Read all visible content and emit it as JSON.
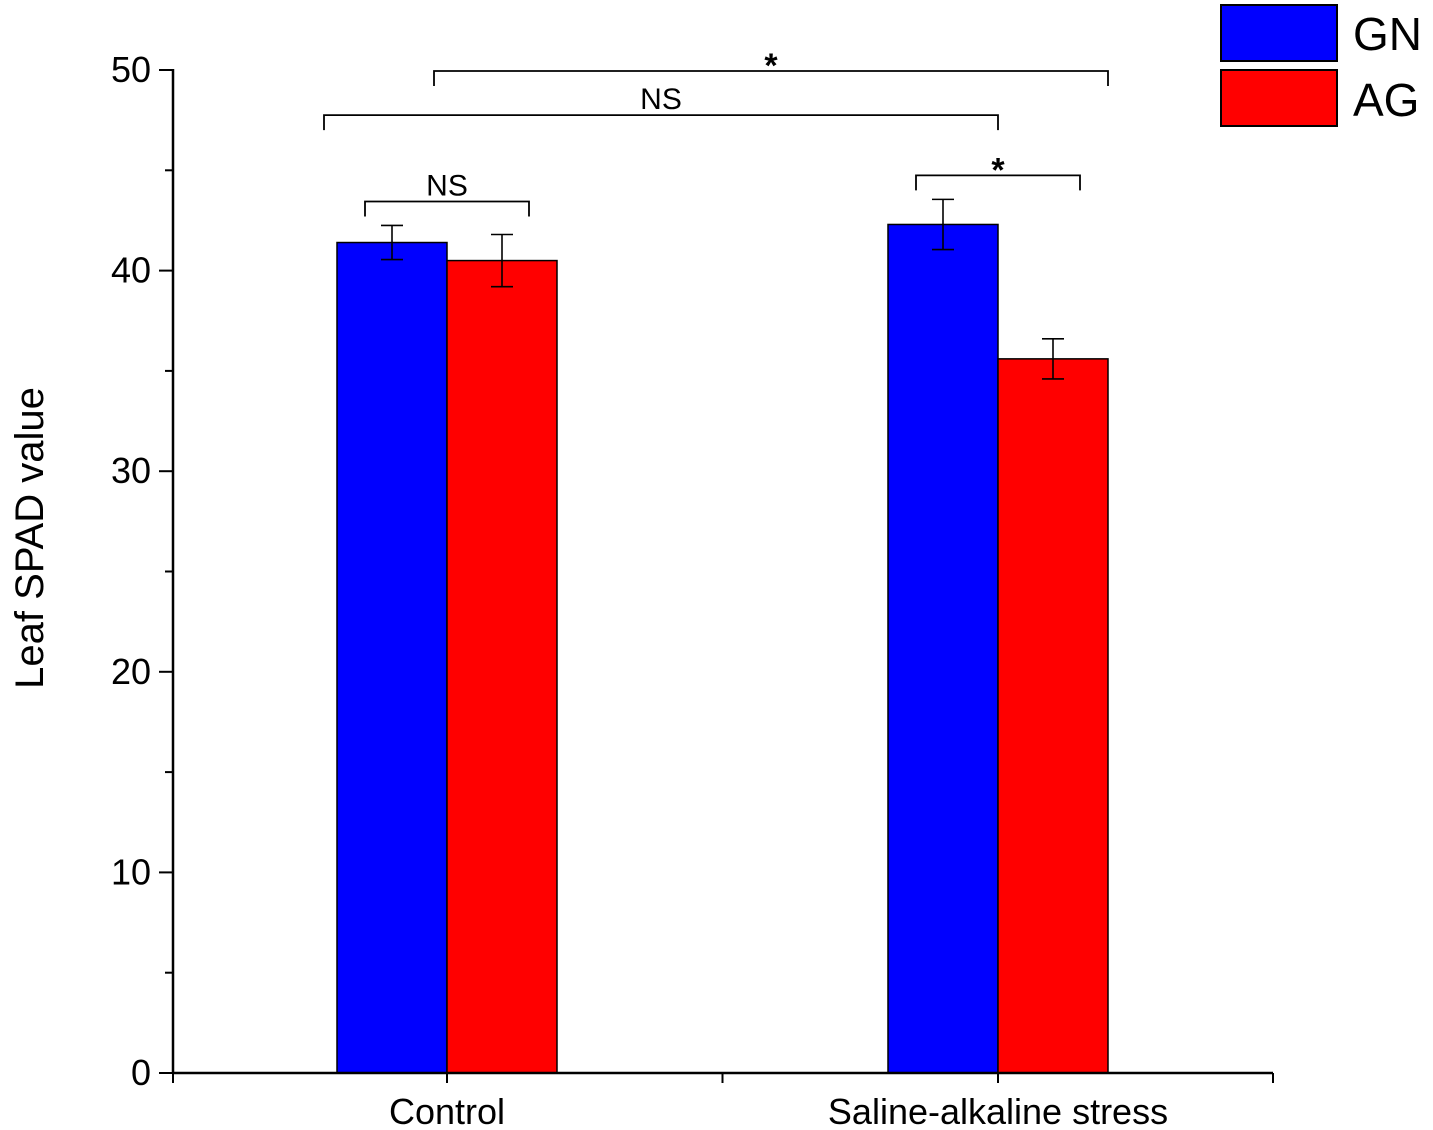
{
  "chart_data": {
    "type": "bar",
    "title": "",
    "xlabel": "",
    "ylabel": "Leaf SPAD value",
    "ylim": [
      0,
      50
    ],
    "yticks": [
      0,
      10,
      20,
      30,
      40,
      50
    ],
    "categories": [
      "Control",
      "Saline-alkaline stress"
    ],
    "series": [
      {
        "name": "GN",
        "color": "#0000ff",
        "values": [
          41.4,
          42.3
        ],
        "errors": [
          0.85,
          1.25
        ]
      },
      {
        "name": "AG",
        "color": "#ff0000",
        "values": [
          40.5,
          35.6
        ],
        "errors": [
          1.3,
          1.0
        ]
      }
    ],
    "legend": {
      "position": "top-right",
      "entries": [
        "GN",
        "AG"
      ]
    },
    "grid": false,
    "significance": [
      {
        "label": "NS",
        "from": "Control GN",
        "to": "Control AG"
      },
      {
        "label": "*",
        "from": "Saline-alkaline stress GN",
        "to": "Saline-alkaline stress AG"
      },
      {
        "label": "NS",
        "from": "Control GN",
        "to": "Saline-alkaline stress GN"
      },
      {
        "label": "*",
        "from": "Control AG",
        "to": "Saline-alkaline stress AG"
      }
    ]
  }
}
